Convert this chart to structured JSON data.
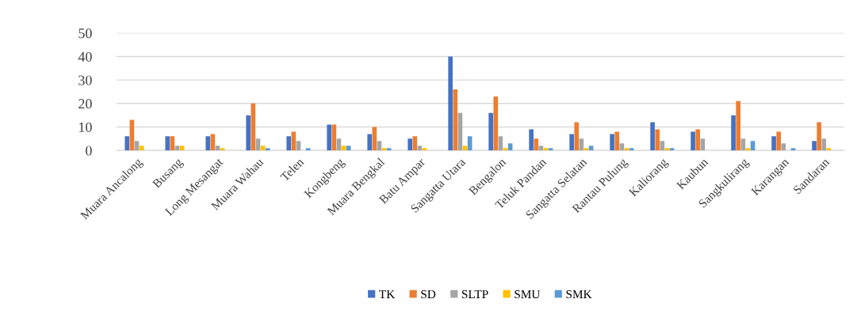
{
  "chart_data": {
    "type": "bar",
    "categories": [
      "Muara Ancalong",
      "Busang",
      "Long Mesangat",
      "Muara Wahau",
      "Telen",
      "Kongbeng",
      "Muara Bengkal",
      "Batu Ampar",
      "Sangatta Utara",
      "Bengalon",
      "Teluk Pandan",
      "Sangatta Selatan",
      "Rantau Pulung",
      "Kaliorang",
      "Kaubun",
      "Sangkulirang",
      "Karangan",
      "Sandaran"
    ],
    "series": [
      {
        "name": "TK",
        "color": "#4472c4",
        "values": [
          6,
          6,
          6,
          15,
          6,
          11,
          7,
          5,
          40,
          16,
          9,
          7,
          7,
          12,
          8,
          15,
          6,
          4
        ]
      },
      {
        "name": "SD",
        "color": "#ed7d31",
        "values": [
          13,
          6,
          7,
          20,
          8,
          11,
          10,
          6,
          26,
          23,
          5,
          12,
          8,
          9,
          9,
          21,
          8,
          12
        ]
      },
      {
        "name": "SLTP",
        "color": "#a5a5a5",
        "values": [
          4,
          2,
          2,
          5,
          4,
          5,
          4,
          2,
          16,
          6,
          2,
          5,
          3,
          4,
          5,
          5,
          3,
          5
        ]
      },
      {
        "name": "SMU",
        "color": "#ffc000",
        "values": [
          2,
          2,
          1,
          2,
          0,
          2,
          1,
          1,
          2,
          1,
          1,
          1,
          1,
          1,
          0,
          1,
          0,
          1
        ]
      },
      {
        "name": "SMK",
        "color": "#5b9bd5",
        "values": [
          0,
          0,
          0,
          1,
          1,
          2,
          1,
          0,
          6,
          3,
          1,
          2,
          1,
          1,
          0,
          4,
          1,
          0
        ]
      }
    ],
    "ylim": [
      0,
      50
    ],
    "yticks": [
      0,
      10,
      20,
      30,
      40,
      50
    ],
    "grid": "y",
    "legend": "bottom"
  }
}
